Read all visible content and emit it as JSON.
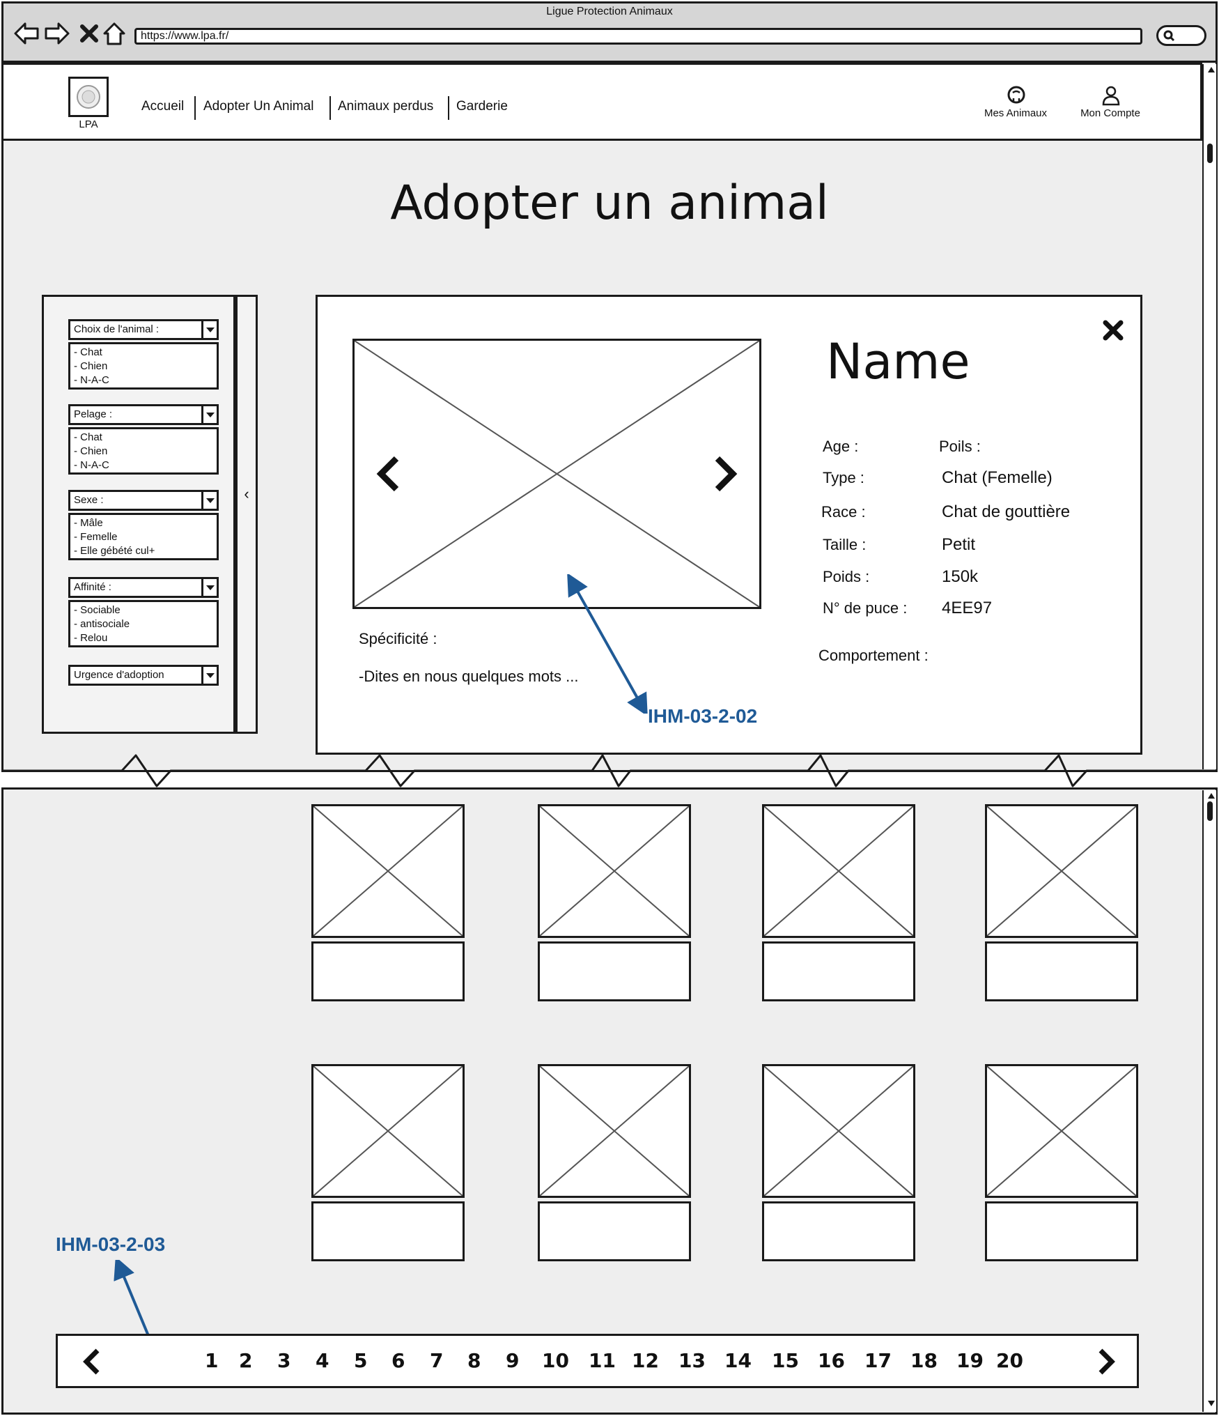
{
  "browser": {
    "window_title": "Ligue Protection Animaux",
    "url": "https://www.lpa.fr/"
  },
  "header": {
    "logo_label": "LPA",
    "nav": [
      "Accueil",
      "Adopter Un Animal",
      "Animaux perdus",
      "Garderie"
    ],
    "my_animals": "Mes Animaux",
    "my_account": "Mon Compte"
  },
  "page": {
    "title": "Adopter un animal"
  },
  "filters": [
    {
      "label": "Choix de l'animal :",
      "options": [
        "- Chat",
        "- Chien",
        "- N-A-C"
      ]
    },
    {
      "label": "Pelage :",
      "options": [
        "- Chat",
        "- Chien",
        "- N-A-C"
      ]
    },
    {
      "label": "Sexe :",
      "options": [
        "- Mâle",
        "- Femelle",
        "- Elle gébété cul+"
      ]
    },
    {
      "label": "Affinité :",
      "options": [
        "- Sociable",
        "- antisociale",
        "- Relou"
      ]
    },
    {
      "label": "Urgence d'adoption",
      "options": []
    }
  ],
  "detail": {
    "name": "Name",
    "age_label": "Age :",
    "poils_label": "Poils :",
    "fields": [
      {
        "label": "Type :",
        "value": "Chat (Femelle)"
      },
      {
        "label": "Race :",
        "value": "Chat de gouttière"
      },
      {
        "label": "Taille :",
        "value": "Petit"
      },
      {
        "label": "Poids :",
        "value": "150k"
      },
      {
        "label": "N° de puce :",
        "value": "4EE97"
      }
    ],
    "comportement_label": "Comportement :",
    "specificite_label": "Spécificité :",
    "specificite_text": "-Dites en nous quelques mots ..."
  },
  "annotations": {
    "detail_ref": "IHM-03-2-02",
    "pagination_ref": "IHM-03-2-03"
  },
  "pagination": {
    "pages": [
      "1",
      "2",
      "3",
      "4",
      "5",
      "6",
      "7",
      "8",
      "9",
      "10",
      "11",
      "12",
      "13",
      "14",
      "15",
      "16",
      "17",
      "18",
      "19",
      "20"
    ]
  },
  "colors": {
    "annotation": "#1f5a96",
    "frame": "#eeeeee",
    "ink": "#1a1a1a"
  }
}
